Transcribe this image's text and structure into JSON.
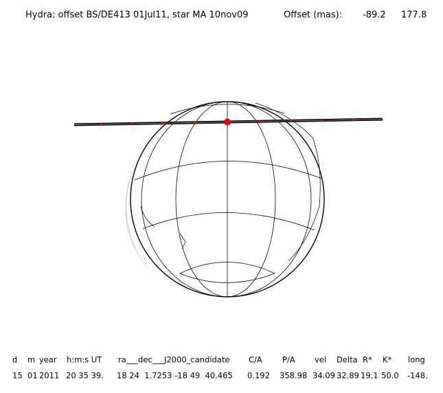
{
  "header": {
    "title": "Hydra: offset BS/DE413 01Jul11, star MA 10nov09",
    "offset_label": "Offset (mas):",
    "offset_values": [
      "-89.2",
      "177.8"
    ]
  },
  "table": {
    "columns": [
      "d",
      "m",
      "year",
      "h:m:s UT",
      "ra___dec___J2000_candidate",
      "C/A",
      "P/A",
      "vel",
      "Delta",
      "R*",
      "K*",
      "long"
    ],
    "rows": [
      [
        "15",
        "01",
        "2011",
        "20 35 39.",
        "18 24  1.7253 -18 49  40.465",
        "0.192",
        "358.98",
        "34.09",
        "32.89",
        "19.1",
        "50.0",
        "-148."
      ]
    ]
  }
}
